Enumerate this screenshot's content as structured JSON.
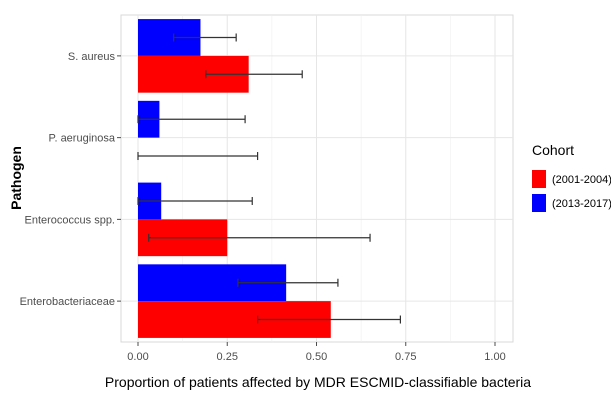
{
  "chart_data": {
    "type": "bar",
    "orientation": "horizontal",
    "title": "",
    "xlabel": "Proportion of patients affected by MDR ESCMID-classifiable bacteria",
    "ylabel": "Pathogen",
    "xlim": [
      0,
      1.02
    ],
    "xticks": [
      0,
      0.25,
      0.5,
      0.75,
      1.0
    ],
    "xtick_labels": [
      "0.00",
      "0.25",
      "0.50",
      "0.75",
      "1.00"
    ],
    "grid": true,
    "legend": {
      "title": "Cohort",
      "placement": "right"
    },
    "categories": [
      "S. aureus",
      "P. aeruginosa",
      "Enterococcus spp.",
      "Enterobacteriaceae"
    ],
    "series": [
      {
        "name": "(2013-2017)",
        "color": "#0000ff",
        "values": [
          0.175,
          0.06,
          0.065,
          0.415
        ],
        "error_low": [
          0.1,
          0.0,
          0.0,
          0.28
        ],
        "error_high": [
          0.275,
          0.3,
          0.32,
          0.56
        ]
      },
      {
        "name": "(2001-2004)",
        "color": "#ff0000",
        "values": [
          0.31,
          0.0,
          0.25,
          0.54
        ],
        "error_low": [
          0.19,
          0.0,
          0.03,
          0.335
        ],
        "error_high": [
          0.46,
          0.335,
          0.65,
          0.735
        ]
      }
    ],
    "legend_order": [
      "(2001-2004)",
      "(2013-2017)"
    ]
  }
}
